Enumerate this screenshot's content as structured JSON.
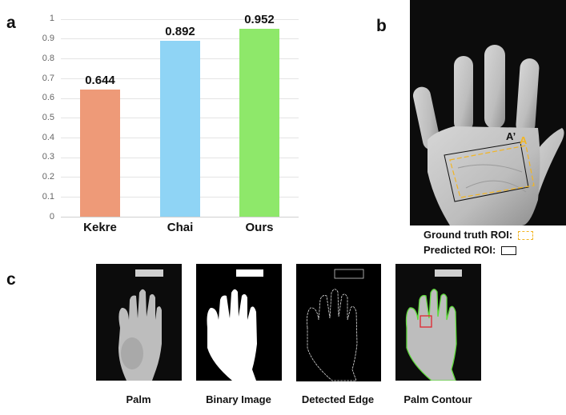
{
  "panels": {
    "a": {
      "label": "a"
    },
    "b": {
      "label": "b",
      "point_A_prime": "A’",
      "point_A": "A",
      "legend": {
        "ground_truth": "Ground truth ROI:",
        "predicted": "Predicted ROI:"
      }
    },
    "c": {
      "label": "c",
      "captions": [
        "Palm",
        "Binary Image",
        "Detected Edge",
        "Palm Contour"
      ]
    }
  },
  "colors": {
    "kekre": "#EE9A78",
    "chai": "#8FD4F5",
    "ours": "#8EE86A",
    "ground_truth_roi": "#F2B523",
    "predicted_roi": "#111111",
    "contour": "#5EDB3A",
    "roi_box": "#E0262E"
  },
  "chart_data": {
    "type": "bar",
    "title": "",
    "xlabel": "",
    "ylabel": "",
    "categories": [
      "Kekre",
      "Chai",
      "Ours"
    ],
    "values": [
      0.644,
      0.892,
      0.952
    ],
    "value_labels": [
      "0.644",
      "0.892",
      "0.952"
    ],
    "ylim": [
      0,
      1
    ],
    "yticks": [
      "0",
      "0.1",
      "0.2",
      "0.3",
      "0.4",
      "0.5",
      "0.6",
      "0.7",
      "0.8",
      "0.9",
      "1"
    ],
    "grid": true,
    "legend": null
  }
}
